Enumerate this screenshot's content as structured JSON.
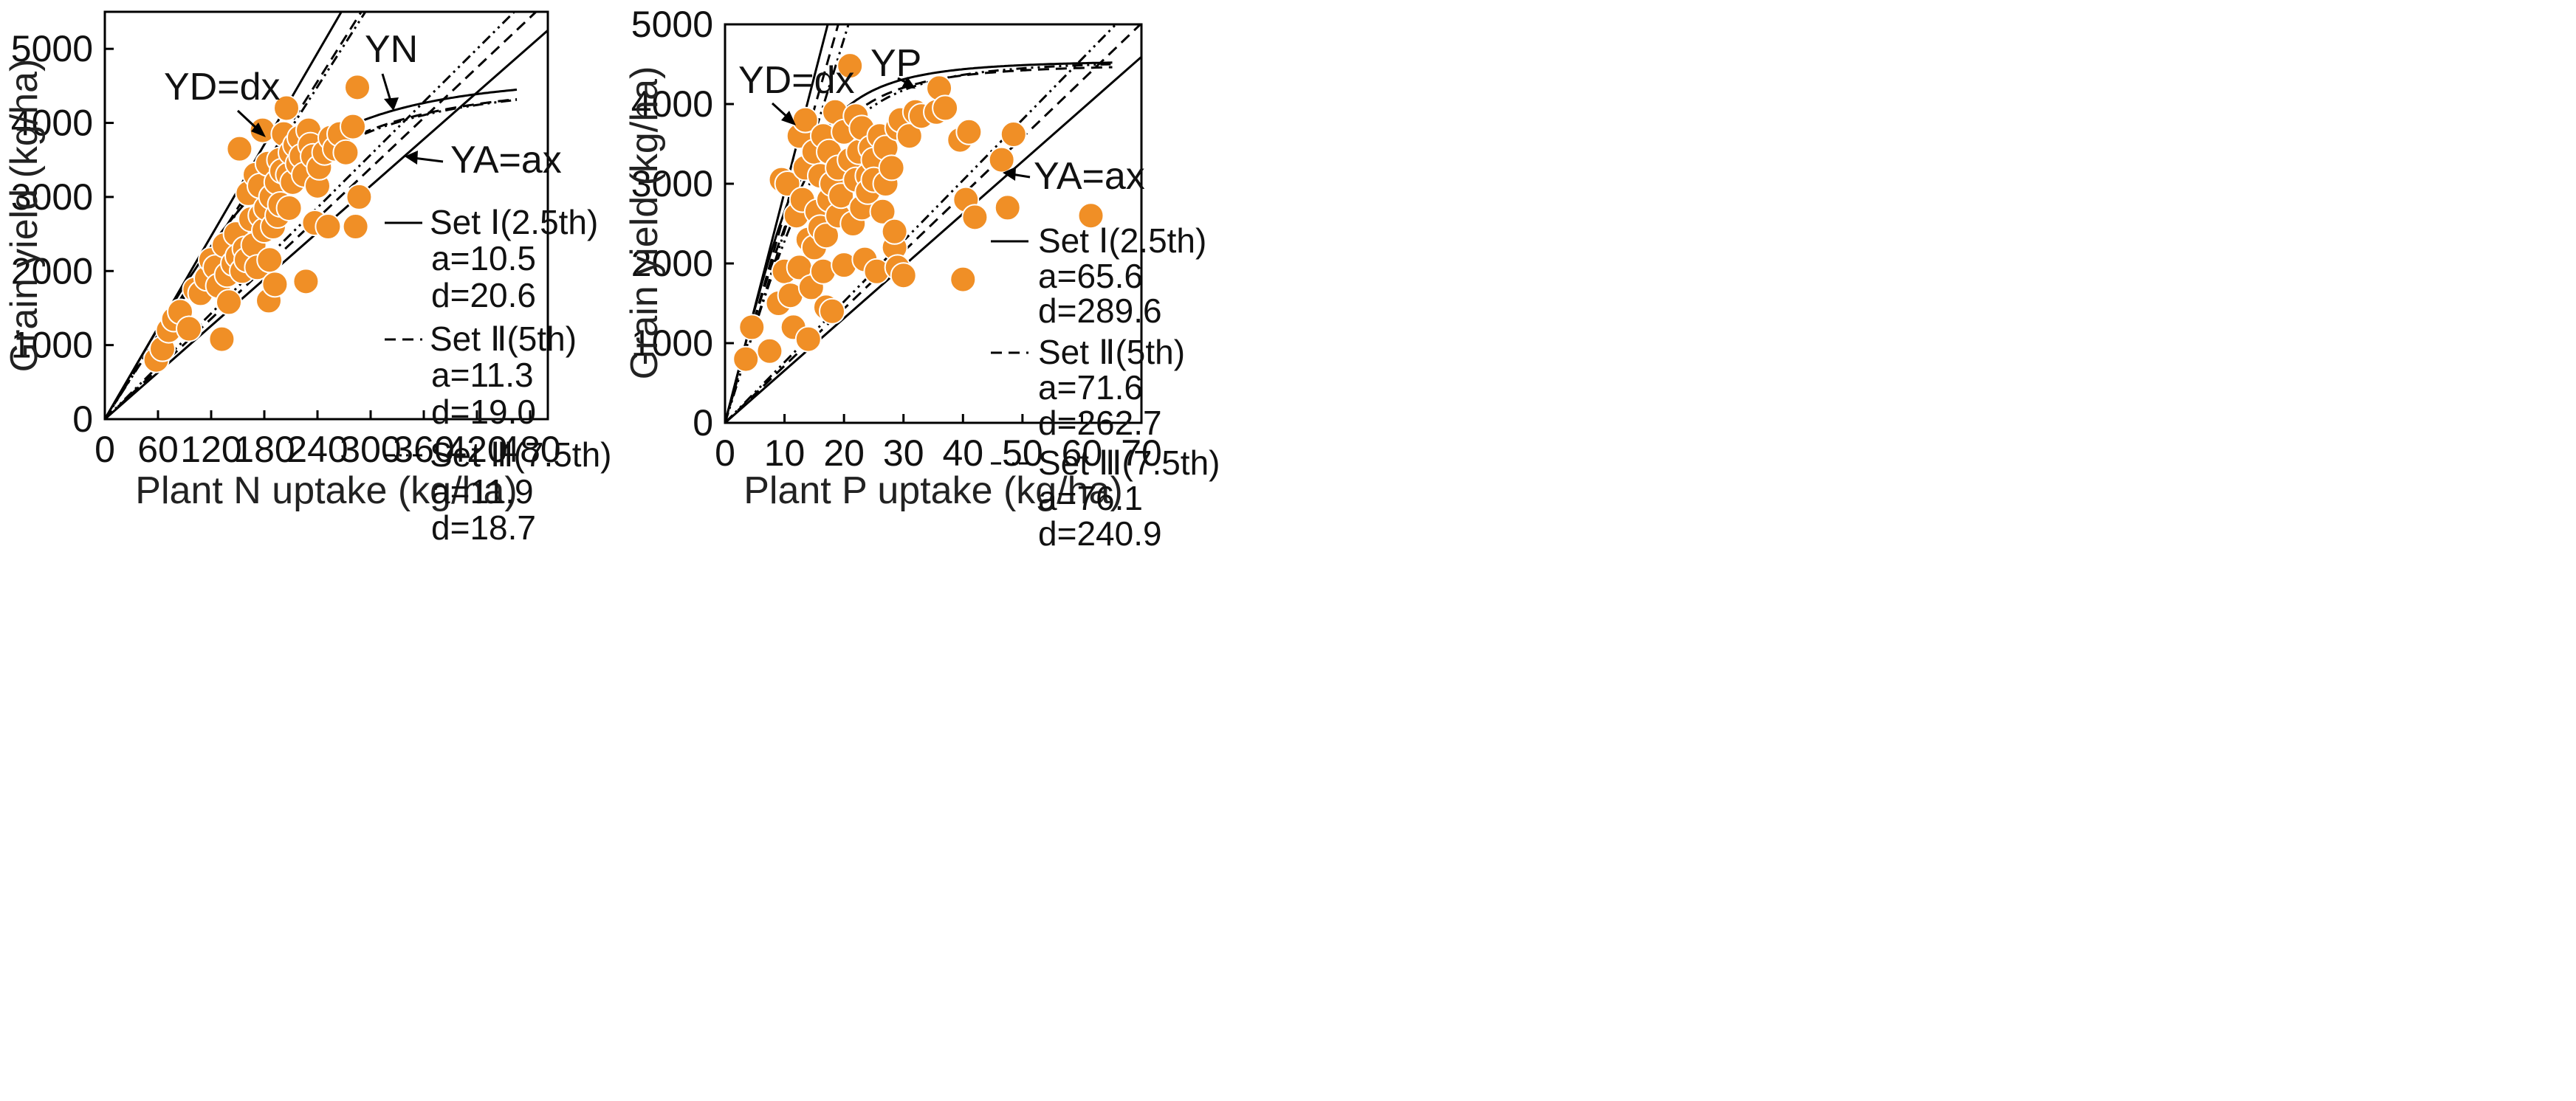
{
  "chart_data": [
    {
      "type": "scatter",
      "xlabel": "Plant N uptake (kg/ha)",
      "ylabel": "Grain yield (kg/ha)",
      "xlim": [
        0,
        500
      ],
      "ylim": [
        0,
        5500
      ],
      "x_ticks": [
        "0",
        "60",
        "120",
        "180",
        "240",
        "300",
        "360",
        "420",
        "480"
      ],
      "y_ticks": [
        "0",
        "1000",
        "2000",
        "3000",
        "4000",
        "5000"
      ],
      "annotations": {
        "yd": "YD=dx",
        "yn": "YN",
        "ya": "YA=ax"
      },
      "legend": [
        {
          "name": "Set Ⅰ(2.5th)",
          "a": "a=10.5",
          "d": "d=20.6"
        },
        {
          "name": "Set Ⅱ(5th)",
          "a": "a=11.3",
          "d": "d=19.0"
        },
        {
          "name": "Set Ⅲ(7.5th)",
          "a": "a=11.9",
          "d": "d=18.7"
        }
      ],
      "series": [
        {
          "name": "Set Ⅰ(2.5th)",
          "style": "solid",
          "a": 10.5,
          "d": 20.6,
          "ym": 4650
        },
        {
          "name": "Set Ⅱ(5th)",
          "style": "dash",
          "a": 11.3,
          "d": 19.0,
          "ym": 4550
        },
        {
          "name": "Set Ⅲ(7.5th)",
          "style": "dashdotdot",
          "a": 11.9,
          "d": 18.7,
          "ym": 4550
        }
      ],
      "points": [
        [
          58,
          800
        ],
        [
          65,
          950
        ],
        [
          72,
          1200
        ],
        [
          78,
          1350
        ],
        [
          85,
          1450
        ],
        [
          95,
          1220
        ],
        [
          102,
          1750
        ],
        [
          108,
          1700
        ],
        [
          115,
          1900
        ],
        [
          120,
          2150
        ],
        [
          125,
          2050
        ],
        [
          128,
          1800
        ],
        [
          132,
          1080
        ],
        [
          135,
          2350
        ],
        [
          138,
          1950
        ],
        [
          140,
          1580
        ],
        [
          145,
          2100
        ],
        [
          148,
          2500
        ],
        [
          150,
          2200
        ],
        [
          152,
          3650
        ],
        [
          155,
          2000
        ],
        [
          158,
          2300
        ],
        [
          160,
          2150
        ],
        [
          162,
          3050
        ],
        [
          165,
          2700
        ],
        [
          168,
          2350
        ],
        [
          170,
          3300
        ],
        [
          172,
          2050
        ],
        [
          175,
          3150
        ],
        [
          176,
          2750
        ],
        [
          178,
          3900
        ],
        [
          180,
          2550
        ],
        [
          182,
          2850
        ],
        [
          184,
          3450
        ],
        [
          185,
          1600
        ],
        [
          186,
          2150
        ],
        [
          188,
          3000
        ],
        [
          190,
          2600
        ],
        [
          192,
          1820
        ],
        [
          194,
          3200
        ],
        [
          195,
          2750
        ],
        [
          197,
          3500
        ],
        [
          198,
          2900
        ],
        [
          200,
          3350
        ],
        [
          202,
          3850
        ],
        [
          205,
          4200
        ],
        [
          207,
          3300
        ],
        [
          208,
          2850
        ],
        [
          210,
          3600
        ],
        [
          212,
          3200
        ],
        [
          215,
          3700
        ],
        [
          218,
          3450
        ],
        [
          220,
          3800
        ],
        [
          222,
          3550
        ],
        [
          225,
          3300
        ],
        [
          227,
          1860
        ],
        [
          230,
          3900
        ],
        [
          232,
          3700
        ],
        [
          235,
          3550
        ],
        [
          237,
          2650
        ],
        [
          240,
          3150
        ],
        [
          242,
          3400
        ],
        [
          248,
          3600
        ],
        [
          252,
          2600
        ],
        [
          255,
          3800
        ],
        [
          260,
          3650
        ],
        [
          265,
          3850
        ],
        [
          272,
          3600
        ],
        [
          280,
          3950
        ],
        [
          283,
          2600
        ],
        [
          285,
          4480
        ],
        [
          287,
          3000
        ]
      ]
    },
    {
      "type": "scatter",
      "xlabel": "Plant P uptake (kg/ha)",
      "ylabel": "Grain yield (kg/ha)",
      "xlim": [
        0,
        70
      ],
      "ylim": [
        0,
        5000
      ],
      "x_ticks": [
        "0",
        "10",
        "20",
        "30",
        "40",
        "50",
        "60",
        "70"
      ],
      "y_ticks": [
        "0",
        "1000",
        "2000",
        "3000",
        "4000",
        "5000"
      ],
      "annotations": {
        "yd": "YD=dx",
        "yp": "YP",
        "ya": "YA=ax"
      },
      "legend": [
        {
          "name": "Set Ⅰ(2.5th)",
          "a": "a=65.6",
          "d": "d=289.6"
        },
        {
          "name": "Set Ⅱ(5th)",
          "a": "a=71.6",
          "d": "d=262.7"
        },
        {
          "name": "Set Ⅲ(7.5th)",
          "a": "a=76.1",
          "d": "d=240.9"
        }
      ],
      "series": [
        {
          "name": "Set Ⅰ(2.5th)",
          "style": "solid",
          "a": 65.6,
          "d": 289.6,
          "ym": 4550
        },
        {
          "name": "Set Ⅱ(5th)",
          "style": "dash",
          "a": 71.6,
          "d": 262.7,
          "ym": 4500
        },
        {
          "name": "Set Ⅲ(7.5th)",
          "style": "dashdotdot",
          "a": 76.1,
          "d": 240.9,
          "ym": 4550
        }
      ],
      "points": [
        [
          3.5,
          800
        ],
        [
          4.5,
          1200
        ],
        [
          7.5,
          900
        ],
        [
          9,
          1500
        ],
        [
          9.5,
          3050
        ],
        [
          10,
          1900
        ],
        [
          10.5,
          3000
        ],
        [
          11,
          1600
        ],
        [
          11.5,
          1200
        ],
        [
          12,
          2600
        ],
        [
          12.5,
          3600
        ],
        [
          12.5,
          1950
        ],
        [
          13,
          2800
        ],
        [
          13.5,
          3200
        ],
        [
          13.5,
          3800
        ],
        [
          14,
          1050
        ],
        [
          14,
          2300
        ],
        [
          14.5,
          1700
        ],
        [
          15,
          2200
        ],
        [
          15,
          3400
        ],
        [
          15.5,
          2650
        ],
        [
          16,
          2450
        ],
        [
          16,
          3100
        ],
        [
          16.5,
          1900
        ],
        [
          16.5,
          3600
        ],
        [
          17,
          1450
        ],
        [
          17,
          2350
        ],
        [
          17.5,
          2800
        ],
        [
          17.5,
          3400
        ],
        [
          18,
          3000
        ],
        [
          18,
          1400
        ],
        [
          18.5,
          3900
        ],
        [
          19,
          2600
        ],
        [
          19,
          3200
        ],
        [
          19.5,
          2850
        ],
        [
          20,
          1980
        ],
        [
          20,
          3650
        ],
        [
          21,
          4480
        ],
        [
          21,
          3300
        ],
        [
          21.5,
          2500
        ],
        [
          22,
          3050
        ],
        [
          22,
          3850
        ],
        [
          22.5,
          3400
        ],
        [
          23,
          2700
        ],
        [
          23,
          3700
        ],
        [
          23.5,
          2050
        ],
        [
          24,
          3100
        ],
        [
          24,
          2900
        ],
        [
          24.5,
          3450
        ],
        [
          25,
          3300
        ],
        [
          25,
          3050
        ],
        [
          25.5,
          1900
        ],
        [
          26,
          3600
        ],
        [
          26.5,
          2650
        ],
        [
          27,
          3450
        ],
        [
          27,
          3000
        ],
        [
          28,
          3200
        ],
        [
          28.5,
          2200
        ],
        [
          28.5,
          2400
        ],
        [
          29,
          3700
        ],
        [
          29,
          1950
        ],
        [
          29.5,
          3800
        ],
        [
          30,
          1850
        ],
        [
          31,
          3600
        ],
        [
          32,
          3900
        ],
        [
          33,
          3850
        ],
        [
          35.5,
          3900
        ],
        [
          36,
          4200
        ],
        [
          37,
          3950
        ],
        [
          39.5,
          3550
        ],
        [
          40,
          1800
        ],
        [
          40.5,
          2800
        ],
        [
          41,
          3650
        ],
        [
          42,
          2580
        ],
        [
          46.5,
          3300
        ],
        [
          47.5,
          2700
        ],
        [
          48.5,
          3620
        ],
        [
          61.5,
          2600
        ]
      ]
    }
  ]
}
